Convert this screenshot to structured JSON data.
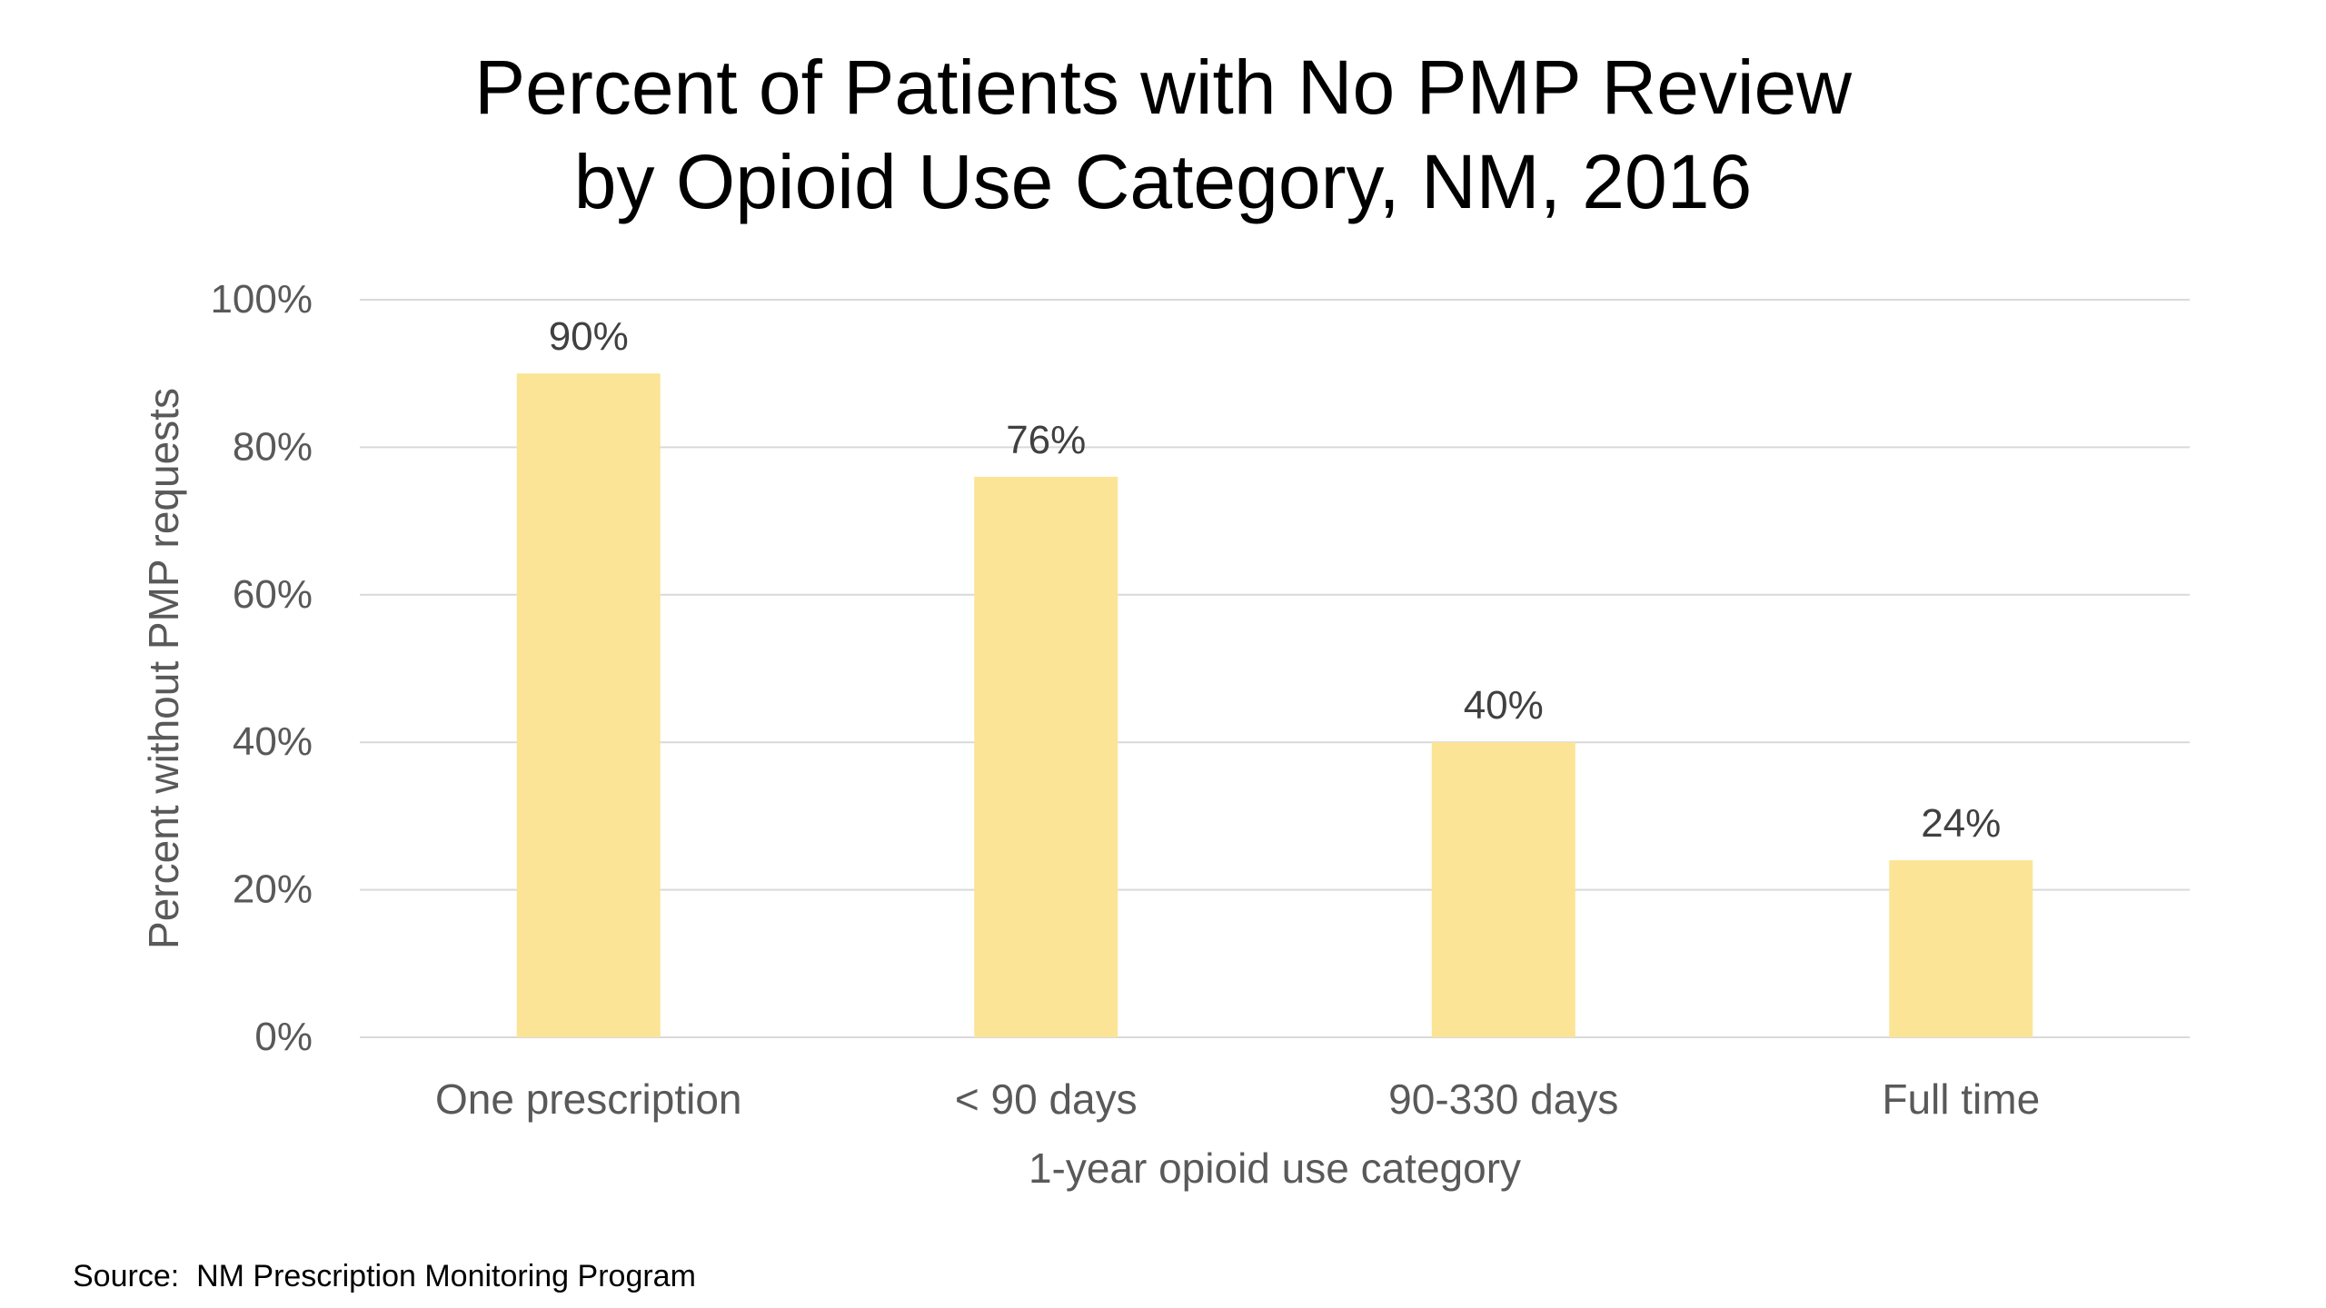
{
  "chart_data": {
    "type": "bar",
    "title_line1": "Percent of Patients with No PMP Review",
    "title_line2": "by Opioid Use Category, NM, 2016",
    "xlabel": "1-year opioid use category",
    "ylabel": "Percent without PMP requests",
    "categories": [
      "One prescription",
      "< 90 days",
      "90-330 days",
      "Full time"
    ],
    "values": [
      90,
      76,
      40,
      24
    ],
    "data_labels": [
      "90%",
      "76%",
      "40%",
      "24%"
    ],
    "ylim": [
      0,
      100
    ],
    "yticks": [
      0,
      20,
      40,
      60,
      80,
      100
    ],
    "ytick_labels": [
      "0%",
      "20%",
      "40%",
      "60%",
      "80%",
      "100%"
    ],
    "grid": true,
    "legend": "none",
    "bar_color": "#FCE496",
    "grid_color": "#D9D9D9",
    "text_color": "#595959"
  },
  "source": "Source:  NM Prescription Monitoring Program"
}
